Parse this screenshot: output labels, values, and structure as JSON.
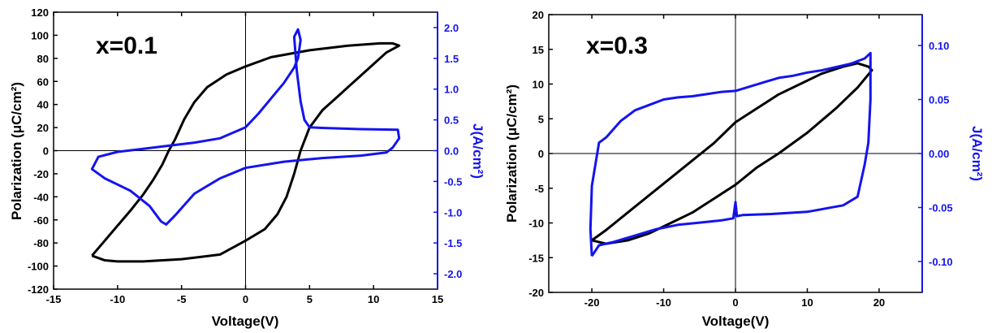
{
  "colors": {
    "black_series": "#000000",
    "blue_series": "#1414ee",
    "axis": "#000000",
    "right_axis": "#1414ee"
  },
  "chart_data": [
    {
      "type": "line",
      "annotation": "x=0.1",
      "xlabel": "Voltage(V)",
      "ylabel": "Polarization (μC/cm²)",
      "y2label": "J(A/cm²)",
      "xlim": [
        -15,
        15
      ],
      "ylim": [
        -120,
        120
      ],
      "y2lim": [
        -2.25,
        2.25
      ],
      "xticks": [
        -15,
        -10,
        -5,
        0,
        5,
        10,
        15
      ],
      "yticks": [
        -120,
        -100,
        -80,
        -60,
        -40,
        -20,
        0,
        20,
        40,
        60,
        80,
        100,
        120
      ],
      "y2ticks": [
        "-2.0",
        "-1.5",
        "-1.0",
        "-0.5",
        "0.0",
        "0.5",
        "1.0",
        "1.5",
        "2.0"
      ],
      "x_tick_labels": [
        "-15",
        "-10",
        "-5",
        "0",
        "5",
        "10",
        "15"
      ],
      "y_tick_labels": [
        "-120",
        "-100",
        "-80",
        "-60",
        "-40",
        "-20",
        "0",
        "20",
        "40",
        "60",
        "80",
        "100",
        "120"
      ],
      "y2_tick_labels": [
        "-2.0",
        "-1.5",
        "-1.0",
        "-0.5",
        "0.0",
        "0.5",
        "1.0",
        "1.5",
        "2.0"
      ],
      "series": [
        {
          "color": "black",
          "axis": "left",
          "points": [
            [
              -12,
              -91
            ],
            [
              -11,
              -95
            ],
            [
              -10,
              -96
            ],
            [
              -8,
              -96
            ],
            [
              -5,
              -94
            ],
            [
              -2,
              -90
            ],
            [
              0,
              -78
            ],
            [
              1.5,
              -68
            ],
            [
              2.5,
              -55
            ],
            [
              3.2,
              -40
            ],
            [
              3.8,
              -20
            ],
            [
              4.3,
              0
            ],
            [
              5,
              20
            ],
            [
              6,
              35
            ],
            [
              7,
              45
            ],
            [
              8,
              55
            ],
            [
              9,
              65
            ],
            [
              10,
              75
            ],
            [
              11,
              85
            ],
            [
              12,
              91
            ],
            [
              11.5,
              93
            ],
            [
              10.5,
              93
            ],
            [
              8,
              91
            ],
            [
              5,
              87
            ],
            [
              2,
              81
            ],
            [
              0,
              73
            ],
            [
              -1.5,
              66
            ],
            [
              -3,
              55
            ],
            [
              -4,
              42
            ],
            [
              -4.8,
              27
            ],
            [
              -5.5,
              10
            ],
            [
              -6,
              0
            ],
            [
              -6.5,
              -12
            ],
            [
              -7.2,
              -25
            ],
            [
              -8,
              -38
            ],
            [
              -9,
              -52
            ],
            [
              -10,
              -65
            ],
            [
              -11,
              -78
            ],
            [
              -12,
              -91
            ]
          ]
        },
        {
          "color": "blue",
          "axis": "right",
          "points": [
            [
              0,
              0.38
            ],
            [
              -2,
              0.2
            ],
            [
              -4,
              0.13
            ],
            [
              -6,
              0.08
            ],
            [
              -8,
              0.03
            ],
            [
              -10,
              -0.02
            ],
            [
              -11.5,
              -0.1
            ],
            [
              -12,
              -0.3
            ],
            [
              -11,
              -0.45
            ],
            [
              -9,
              -0.65
            ],
            [
              -7.5,
              -0.9
            ],
            [
              -6.6,
              -1.15
            ],
            [
              -6.2,
              -1.2
            ],
            [
              -5.5,
              -1.05
            ],
            [
              -4,
              -0.7
            ],
            [
              -2,
              -0.45
            ],
            [
              0,
              -0.28
            ],
            [
              3,
              -0.18
            ],
            [
              6,
              -0.12
            ],
            [
              9,
              -0.08
            ],
            [
              11,
              -0.03
            ],
            [
              11.5,
              0.05
            ],
            [
              12,
              0.2
            ],
            [
              11.9,
              0.34
            ],
            [
              9,
              0.35
            ],
            [
              6,
              0.37
            ],
            [
              5,
              0.38
            ],
            [
              4.6,
              0.5
            ],
            [
              4.3,
              0.8
            ],
            [
              4,
              1.3
            ],
            [
              3.8,
              1.85
            ],
            [
              4.1,
              1.97
            ],
            [
              4.3,
              1.8
            ],
            [
              4.1,
              1.5
            ],
            [
              3.8,
              1.35
            ],
            [
              3,
              1.1
            ],
            [
              2,
              0.85
            ],
            [
              1,
              0.6
            ],
            [
              0,
              0.38
            ]
          ]
        }
      ]
    },
    {
      "type": "line",
      "annotation": "x=0.3",
      "xlabel": "Voltage(V)",
      "ylabel": "Polarization (μC/cm²)",
      "y2label": "J(A/cm²)",
      "xlim": [
        -26,
        26
      ],
      "ylim": [
        -20,
        20
      ],
      "y2lim": [
        -0.1286,
        0.1286
      ],
      "xticks": [
        -20,
        -10,
        0,
        10,
        20
      ],
      "yticks": [
        -20,
        -15,
        -10,
        -5,
        0,
        5,
        10,
        15,
        20
      ],
      "y2ticks": [
        -0.1,
        -0.05,
        0,
        0.05,
        0.1
      ],
      "x_tick_labels": [
        "-20",
        "-10",
        "0",
        "10",
        "20"
      ],
      "y_tick_labels": [
        "-20",
        "-15",
        "-10",
        "-5",
        "0",
        "5",
        "10",
        "15",
        "20"
      ],
      "y2_tick_labels": [
        "-0.10",
        "-0.05",
        "0.00",
        "0.05",
        "0.10"
      ],
      "series": [
        {
          "color": "black",
          "axis": "left",
          "points": [
            [
              -20,
              -12.5
            ],
            [
              -18,
              -11
            ],
            [
              -15,
              -8.5
            ],
            [
              -12,
              -6
            ],
            [
              -9,
              -3.5
            ],
            [
              -6,
              -1
            ],
            [
              -3,
              1.5
            ],
            [
              0,
              4.5
            ],
            [
              3,
              6.5
            ],
            [
              6,
              8.5
            ],
            [
              9,
              10
            ],
            [
              12,
              11.5
            ],
            [
              15,
              12.5
            ],
            [
              17,
              13
            ],
            [
              18.5,
              12.5
            ],
            [
              19,
              12
            ],
            [
              17,
              9.5
            ],
            [
              14,
              6.5
            ],
            [
              10,
              3
            ],
            [
              6,
              0
            ],
            [
              3,
              -2
            ],
            [
              0,
              -4.5
            ],
            [
              -3,
              -6.5
            ],
            [
              -6,
              -8.5
            ],
            [
              -9,
              -10
            ],
            [
              -12,
              -11.5
            ],
            [
              -15,
              -12.5
            ],
            [
              -18,
              -13
            ],
            [
              -20,
              -12.5
            ]
          ]
        },
        {
          "color": "blue",
          "axis": "right",
          "points": [
            [
              -20,
              -0.095
            ],
            [
              -20.2,
              -0.07
            ],
            [
              -20,
              -0.03
            ],
            [
              -19.5,
              -0.01
            ],
            [
              -19,
              0.01
            ],
            [
              -18,
              0.015
            ],
            [
              -16,
              0.03
            ],
            [
              -14,
              0.04
            ],
            [
              -12,
              0.045
            ],
            [
              -10,
              0.05
            ],
            [
              -8,
              0.052
            ],
            [
              -6,
              0.053
            ],
            [
              -4,
              0.055
            ],
            [
              -2,
              0.057
            ],
            [
              0,
              0.058
            ],
            [
              2,
              0.062
            ],
            [
              4,
              0.066
            ],
            [
              6,
              0.07
            ],
            [
              8,
              0.072
            ],
            [
              10,
              0.075
            ],
            [
              12,
              0.077
            ],
            [
              14,
              0.08
            ],
            [
              16,
              0.083
            ],
            [
              18,
              0.088
            ],
            [
              18.8,
              0.093
            ],
            [
              18.8,
              0.05
            ],
            [
              18.5,
              0.01
            ],
            [
              18,
              -0.01
            ],
            [
              17,
              -0.04
            ],
            [
              15,
              -0.048
            ],
            [
              10,
              -0.054
            ],
            [
              5,
              -0.056
            ],
            [
              1,
              -0.057
            ],
            [
              0.2,
              -0.058
            ],
            [
              0,
              -0.045
            ],
            [
              -0.3,
              -0.06
            ],
            [
              -2,
              -0.062
            ],
            [
              -5,
              -0.064
            ],
            [
              -8,
              -0.066
            ],
            [
              -11,
              -0.07
            ],
            [
              -14,
              -0.076
            ],
            [
              -17,
              -0.082
            ],
            [
              -19,
              -0.085
            ],
            [
              -20,
              -0.095
            ]
          ]
        }
      ]
    }
  ]
}
